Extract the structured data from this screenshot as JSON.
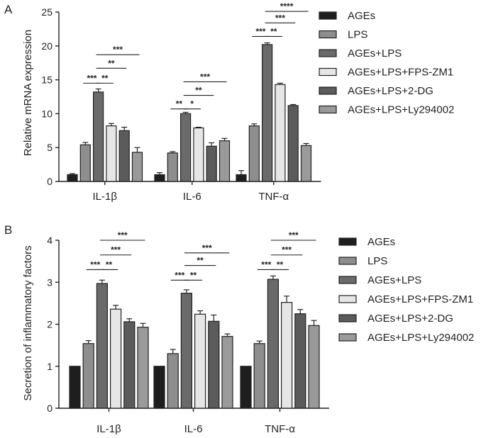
{
  "chart_data": [
    {
      "panel": "A",
      "type": "bar",
      "ylabel": "Relative mRNA expression",
      "ylim": [
        0,
        25
      ],
      "yticks": [
        0,
        5,
        10,
        15,
        20,
        25
      ],
      "categories": [
        "IL-1β",
        "IL-6",
        "TNF-α"
      ],
      "series": [
        {
          "name": "AGEs",
          "values": [
            1.0,
            1.0,
            1.0
          ],
          "errors": [
            0.15,
            0.3,
            0.6
          ]
        },
        {
          "name": "LPS",
          "values": [
            5.4,
            4.2,
            8.2
          ],
          "errors": [
            0.35,
            0.2,
            0.3
          ]
        },
        {
          "name": "AGEs+LPS",
          "values": [
            13.2,
            10.0,
            20.2
          ],
          "errors": [
            0.45,
            0.2,
            0.25
          ]
        },
        {
          "name": "AGEs+LPS+FPS-ZM1",
          "values": [
            8.2,
            7.9,
            14.3
          ],
          "errors": [
            0.35,
            0.1,
            0.2
          ]
        },
        {
          "name": "AGEs+LPS+2-DG",
          "values": [
            7.5,
            5.2,
            11.2
          ],
          "errors": [
            0.5,
            0.5,
            0.15
          ]
        },
        {
          "name": "AGEs+LPS+Ly294002",
          "values": [
            4.3,
            6.0,
            5.3
          ],
          "errors": [
            0.7,
            0.35,
            0.3
          ]
        }
      ],
      "significance": [
        {
          "category": 0,
          "from": 1,
          "to": 2,
          "label": "***",
          "y": 14.5
        },
        {
          "category": 0,
          "from": 2,
          "to": 3,
          "label": "**",
          "y": 14.5
        },
        {
          "category": 0,
          "from": 2,
          "to": 4,
          "label": "**",
          "y": 16.7
        },
        {
          "category": 0,
          "from": 2,
          "to": 5,
          "label": "***",
          "y": 18.7
        },
        {
          "category": 1,
          "from": 1,
          "to": 2,
          "label": "**",
          "y": 10.7
        },
        {
          "category": 1,
          "from": 2,
          "to": 3,
          "label": "*",
          "y": 10.7
        },
        {
          "category": 1,
          "from": 2,
          "to": 4,
          "label": "**",
          "y": 12.7
        },
        {
          "category": 1,
          "from": 2,
          "to": 5,
          "label": "***",
          "y": 14.7
        },
        {
          "category": 2,
          "from": 1,
          "to": 2,
          "label": "***",
          "y": 21.4
        },
        {
          "category": 2,
          "from": 2,
          "to": 3,
          "label": "**",
          "y": 21.4
        },
        {
          "category": 2,
          "from": 2,
          "to": 4,
          "label": "***",
          "y": 23.4
        },
        {
          "category": 2,
          "from": 2,
          "to": 5,
          "label": "****",
          "y": 25.1
        }
      ]
    },
    {
      "panel": "B",
      "type": "bar",
      "ylabel": "Secretion of inflammatory factors",
      "ylim": [
        0,
        4
      ],
      "yticks": [
        0,
        1,
        2,
        3,
        4
      ],
      "categories": [
        "IL-1β",
        "IL-6",
        "TNF-α"
      ],
      "series": [
        {
          "name": "AGEs",
          "values": [
            1.0,
            1.0,
            1.0
          ],
          "errors": [
            0,
            0,
            0
          ]
        },
        {
          "name": "LPS",
          "values": [
            1.54,
            1.3,
            1.54
          ],
          "errors": [
            0.07,
            0.1,
            0.06
          ]
        },
        {
          "name": "AGEs+LPS",
          "values": [
            2.97,
            2.74,
            3.07
          ],
          "errors": [
            0.08,
            0.08,
            0.08
          ]
        },
        {
          "name": "AGEs+LPS+FPS-ZM1",
          "values": [
            2.36,
            2.24,
            2.52
          ],
          "errors": [
            0.09,
            0.08,
            0.15
          ]
        },
        {
          "name": "AGEs+LPS+2-DG",
          "values": [
            2.06,
            2.07,
            2.25
          ],
          "errors": [
            0.07,
            0.15,
            0.1
          ]
        },
        {
          "name": "AGEs+LPS+Ly294002",
          "values": [
            1.93,
            1.71,
            1.97
          ],
          "errors": [
            0.09,
            0.06,
            0.12
          ]
        }
      ],
      "significance": [
        {
          "category": 0,
          "from": 1,
          "to": 2,
          "label": "***",
          "y": 3.3
        },
        {
          "category": 0,
          "from": 2,
          "to": 3,
          "label": "**",
          "y": 3.3
        },
        {
          "category": 0,
          "from": 2,
          "to": 4,
          "label": "***",
          "y": 3.65
        },
        {
          "category": 0,
          "from": 2,
          "to": 5,
          "label": "***",
          "y": 4.0
        },
        {
          "category": 1,
          "from": 1,
          "to": 2,
          "label": "***",
          "y": 3.05
        },
        {
          "category": 1,
          "from": 2,
          "to": 3,
          "label": "**",
          "y": 3.05
        },
        {
          "category": 1,
          "from": 2,
          "to": 4,
          "label": "**",
          "y": 3.4
        },
        {
          "category": 1,
          "from": 2,
          "to": 5,
          "label": "***",
          "y": 3.7
        },
        {
          "category": 2,
          "from": 1,
          "to": 2,
          "label": "***",
          "y": 3.3
        },
        {
          "category": 2,
          "from": 2,
          "to": 3,
          "label": "**",
          "y": 3.3
        },
        {
          "category": 2,
          "from": 2,
          "to": 4,
          "label": "***",
          "y": 3.65
        },
        {
          "category": 2,
          "from": 2,
          "to": 5,
          "label": "***",
          "y": 4.0
        }
      ]
    }
  ],
  "series_colors": [
    "#1e1e1e",
    "#8e8e8e",
    "#6a6a6a",
    "#e6e6e6",
    "#5b5b5b",
    "#9a9a9a"
  ]
}
